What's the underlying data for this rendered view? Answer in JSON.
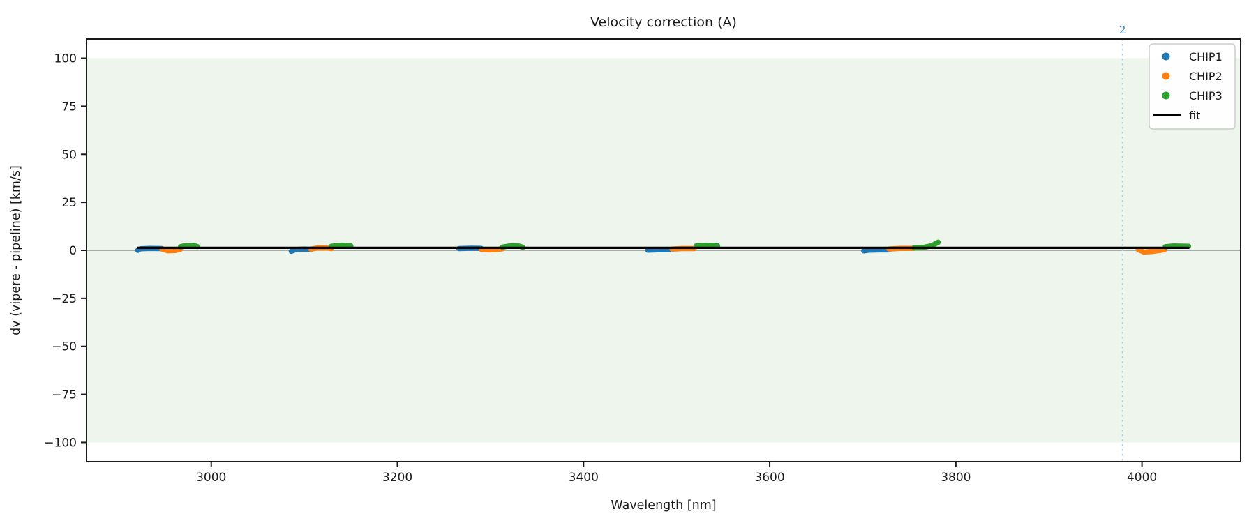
{
  "title": "Velocity correction (A)",
  "axes": {
    "xlabel": "Wavelength [nm]",
    "ylabel": "dv (vipere - pipeline) [km/s]",
    "xlim": [
      2866,
      4106
    ],
    "ylim": [
      -110,
      110
    ],
    "xticks": [
      3000,
      3200,
      3400,
      3600,
      3800,
      4000
    ],
    "yticks": [
      100,
      75,
      50,
      25,
      0,
      -25,
      -50,
      -75,
      -100
    ]
  },
  "legend": {
    "items": [
      {
        "label": "CHIP1",
        "marker": "dot",
        "color": "#1f77b4"
      },
      {
        "label": "CHIP2",
        "marker": "dot",
        "color": "#ff7f0e"
      },
      {
        "label": "CHIP3",
        "marker": "dot",
        "color": "#2ca02c"
      },
      {
        "label": "fit",
        "marker": "line",
        "color": "#000000"
      }
    ]
  },
  "chart_data": {
    "type": "scatter",
    "title": "Velocity correction (A)",
    "xlabel": "Wavelength [nm]",
    "ylabel": "dv (vipere - pipeline) [km/s]",
    "xlim": [
      2866,
      4106
    ],
    "ylim": [
      -110,
      110
    ],
    "grid": false,
    "legend_position": "upper right",
    "band": {
      "ymin": -100,
      "ymax": 100,
      "color": "#edf5ed"
    },
    "zero_line": {
      "y": 0,
      "color": "#808080"
    },
    "vline": {
      "x": 3979,
      "label": "2",
      "line_color": "#a9cfe2",
      "label_color": "#3e86ba"
    },
    "series": [
      {
        "name": "CHIP1",
        "color": "#1f77b4",
        "style": "scatter-strip",
        "segments": [
          [
            [
              2921,
              0.0
            ],
            [
              2924,
              0.8
            ],
            [
              2934,
              1.0
            ],
            [
              2947,
              0.9
            ]
          ],
          [
            [
              3086,
              -0.5
            ],
            [
              3091,
              0.4
            ],
            [
              3100,
              0.6
            ],
            [
              3107,
              0.5
            ]
          ],
          [
            [
              3266,
              0.9
            ],
            [
              3280,
              1.1
            ],
            [
              3290,
              1.0
            ]
          ],
          [
            [
              3469,
              0.1
            ],
            [
              3480,
              0.3
            ],
            [
              3495,
              0.3
            ]
          ],
          [
            [
              3701,
              -0.3
            ],
            [
              3707,
              0.1
            ],
            [
              3718,
              0.2
            ],
            [
              3728,
              0.2
            ]
          ]
        ]
      },
      {
        "name": "CHIP2",
        "color": "#ff7f0e",
        "style": "scatter-strip",
        "segments": [
          [
            [
              2947,
              0.7
            ],
            [
              2953,
              -0.2
            ],
            [
              2961,
              -0.1
            ],
            [
              2967,
              0.6
            ]
          ],
          [
            [
              3107,
              0.6
            ],
            [
              3115,
              1.3
            ],
            [
              3124,
              1.2
            ],
            [
              3129,
              0.9
            ]
          ],
          [
            [
              3290,
              0.5
            ],
            [
              3300,
              0.2
            ],
            [
              3308,
              0.5
            ],
            [
              3313,
              0.8
            ]
          ],
          [
            [
              3495,
              0.6
            ],
            [
              3506,
              0.9
            ],
            [
              3519,
              0.9
            ]
          ],
          [
            [
              3728,
              0.7
            ],
            [
              3740,
              1.0
            ],
            [
              3755,
              1.0
            ]
          ],
          [
            [
              3996,
              0.4
            ],
            [
              4002,
              -0.9
            ],
            [
              4012,
              -0.5
            ],
            [
              4024,
              0.3
            ]
          ]
        ]
      },
      {
        "name": "CHIP3",
        "color": "#2ca02c",
        "style": "scatter-strip",
        "segments": [
          [
            [
              2967,
              1.9
            ],
            [
              2973,
              2.5
            ],
            [
              2981,
              2.5
            ],
            [
              2985,
              2.0
            ]
          ],
          [
            [
              3129,
              2.1
            ],
            [
              3140,
              2.7
            ],
            [
              3150,
              2.3
            ]
          ],
          [
            [
              3313,
              1.7
            ],
            [
              3322,
              2.4
            ],
            [
              3330,
              2.3
            ],
            [
              3335,
              1.6
            ]
          ],
          [
            [
              3521,
              2.3
            ],
            [
              3530,
              2.6
            ],
            [
              3544,
              2.4
            ]
          ],
          [
            [
              3755,
              1.3
            ],
            [
              3766,
              1.6
            ],
            [
              3774,
              2.4
            ],
            [
              3781,
              4.2
            ]
          ],
          [
            [
              4025,
              1.9
            ],
            [
              4034,
              2.3
            ],
            [
              4050,
              2.1
            ]
          ]
        ]
      },
      {
        "name": "fit",
        "color": "#000000",
        "style": "line",
        "segments": [
          [
            [
              2921,
              1.3
            ],
            [
              4050,
              1.3
            ]
          ]
        ]
      }
    ]
  }
}
